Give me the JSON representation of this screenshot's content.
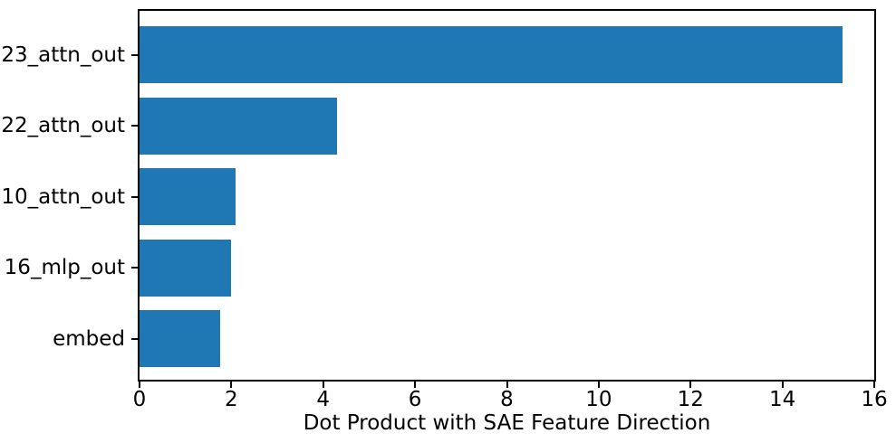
{
  "chart_data": {
    "type": "bar",
    "orientation": "horizontal",
    "title": "",
    "xlabel": "Dot Product with SAE Feature Direction",
    "ylabel": "",
    "categories": [
      "23_attn_out",
      "22_attn_out",
      "10_attn_out",
      "16_mlp_out",
      "embed"
    ],
    "values": [
      15.3,
      4.3,
      2.1,
      2.0,
      1.76
    ],
    "xlim": [
      0,
      16
    ],
    "xticks": [
      0,
      2,
      4,
      6,
      8,
      10,
      12,
      14,
      16
    ],
    "grid": false,
    "legend": "none",
    "bar_color": "#1f77b4",
    "axis_color": "#000000",
    "text_color": "#000000",
    "background_color": "#ffffff"
  }
}
